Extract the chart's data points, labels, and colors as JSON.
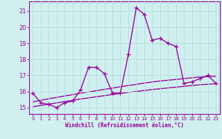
{
  "x": [
    0,
    1,
    2,
    3,
    4,
    5,
    6,
    7,
    8,
    9,
    10,
    11,
    12,
    13,
    14,
    15,
    16,
    17,
    18,
    19,
    20,
    21,
    22,
    23
  ],
  "temp_line": [
    15.9,
    15.3,
    15.2,
    15.0,
    15.3,
    15.4,
    16.1,
    17.5,
    17.5,
    17.1,
    15.9,
    15.9,
    18.3,
    21.2,
    20.8,
    19.2,
    19.3,
    19.0,
    18.8,
    16.5,
    16.6,
    16.8,
    17.0,
    16.5
  ],
  "trend1": [
    15.35,
    15.45,
    15.55,
    15.63,
    15.72,
    15.8,
    15.89,
    15.97,
    16.05,
    16.13,
    16.21,
    16.29,
    16.37,
    16.44,
    16.52,
    16.59,
    16.65,
    16.7,
    16.75,
    16.8,
    16.85,
    16.9,
    16.92,
    16.95
  ],
  "trend2": [
    15.05,
    15.13,
    15.21,
    15.29,
    15.37,
    15.45,
    15.53,
    15.6,
    15.67,
    15.74,
    15.81,
    15.88,
    15.94,
    16.0,
    16.06,
    16.12,
    16.17,
    16.22,
    16.27,
    16.32,
    16.37,
    16.42,
    16.45,
    16.48
  ],
  "line_color": "#990099",
  "bg_color": "#d0f0f0",
  "grid_color": "#b8dede",
  "xlabel": "Windchill (Refroidissement éolien,°C)",
  "ylim": [
    14.6,
    21.6
  ],
  "xlim": [
    -0.5,
    23.5
  ],
  "yticks": [
    15,
    16,
    17,
    18,
    19,
    20,
    21
  ],
  "xticks": [
    0,
    1,
    2,
    3,
    4,
    5,
    6,
    7,
    8,
    9,
    10,
    11,
    12,
    13,
    14,
    15,
    16,
    17,
    18,
    19,
    20,
    21,
    22,
    23
  ],
  "marker": "+",
  "markersize": 4,
  "linewidth": 1.0
}
